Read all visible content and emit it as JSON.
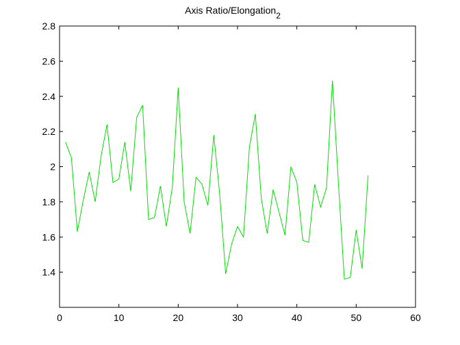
{
  "chart_data": {
    "type": "line",
    "title": "Axis Ratio/Elongation",
    "title_subscript": "2",
    "xlabel": "",
    "ylabel": "",
    "xlim": [
      0,
      60
    ],
    "ylim": [
      1.2,
      2.8
    ],
    "xticks": [
      "0",
      "10",
      "20",
      "30",
      "40",
      "50",
      "60"
    ],
    "yticks": [
      "1.4",
      "1.6",
      "1.8",
      "2",
      "2.2",
      "2.4",
      "2.6",
      "2.8"
    ],
    "grid": false,
    "series": [
      {
        "color": "#00e000",
        "x": [
          1,
          2,
          3,
          4,
          5,
          6,
          7,
          8,
          9,
          10,
          11,
          12,
          13,
          14,
          15,
          16,
          17,
          18,
          19,
          20,
          21,
          22,
          23,
          24,
          25,
          26,
          27,
          28,
          29,
          30,
          31,
          32,
          33,
          34,
          35,
          36,
          37,
          38,
          39,
          40,
          41,
          42,
          43,
          44,
          45,
          46,
          47,
          48,
          49,
          50,
          51,
          52
        ],
        "values": [
          2.14,
          2.05,
          1.63,
          1.81,
          1.97,
          1.8,
          2.06,
          2.24,
          1.91,
          1.93,
          2.14,
          1.86,
          2.28,
          2.35,
          1.7,
          1.71,
          1.89,
          1.66,
          1.88,
          2.45,
          1.8,
          1.62,
          1.94,
          1.9,
          1.78,
          2.18,
          1.84,
          1.39,
          1.56,
          1.66,
          1.6,
          2.11,
          2.3,
          1.82,
          1.62,
          1.87,
          1.74,
          1.61,
          2.0,
          1.91,
          1.58,
          1.57,
          1.9,
          1.77,
          1.88,
          2.49,
          1.91,
          1.36,
          1.37,
          1.64,
          1.42,
          1.95
        ]
      }
    ]
  }
}
